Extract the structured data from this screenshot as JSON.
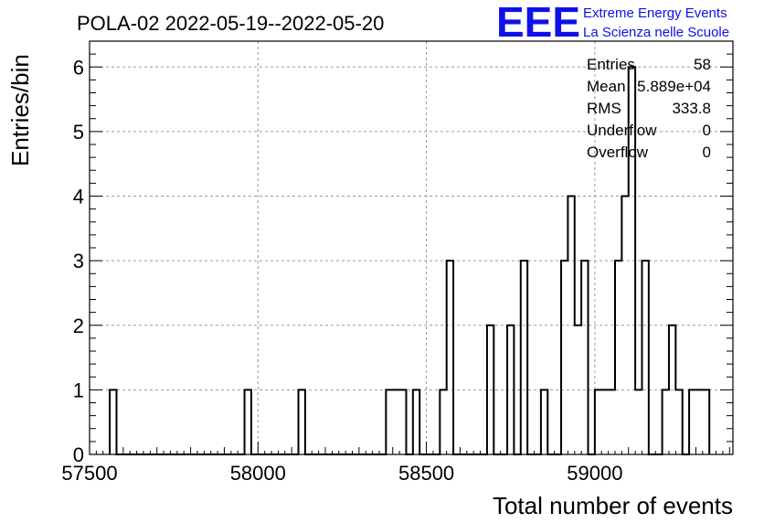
{
  "title": "POLA-02 2022-05-19--2022-05-20",
  "logo": {
    "mark": "EEE",
    "line1": "Extreme Energy Events",
    "line2": "La Scienza nelle Scuole",
    "color": "#1010e8"
  },
  "stats": [
    {
      "label": "Entries",
      "value": "58"
    },
    {
      "label": "Mean",
      "value": "5.889e+04"
    },
    {
      "label": "RMS",
      "value": "333.8"
    },
    {
      "label": "Underflow",
      "value": "0"
    },
    {
      "label": "Overflow",
      "value": "0"
    }
  ],
  "chart_data": {
    "type": "histogram",
    "title": "POLA-02 2022-05-19--2022-05-20",
    "xlabel": "Total number of events",
    "ylabel": "Entries/bin",
    "xlim": [
      57500,
      59410
    ],
    "ylim": [
      0,
      6.4
    ],
    "bin_width": 20,
    "xticks": [
      57500,
      58000,
      58500,
      59000
    ],
    "yticks": [
      0,
      1,
      2,
      3,
      4,
      5,
      6
    ],
    "grid": true,
    "bins": [
      {
        "x0": 57560,
        "count": 1
      },
      {
        "x0": 57960,
        "count": 1
      },
      {
        "x0": 58120,
        "count": 1
      },
      {
        "x0": 58380,
        "count": 1
      },
      {
        "x0": 58400,
        "count": 1
      },
      {
        "x0": 58420,
        "count": 1
      },
      {
        "x0": 58460,
        "count": 1
      },
      {
        "x0": 58540,
        "count": 1
      },
      {
        "x0": 58560,
        "count": 3
      },
      {
        "x0": 58680,
        "count": 2
      },
      {
        "x0": 58740,
        "count": 2
      },
      {
        "x0": 58780,
        "count": 3
      },
      {
        "x0": 58840,
        "count": 1
      },
      {
        "x0": 58900,
        "count": 3
      },
      {
        "x0": 58920,
        "count": 4
      },
      {
        "x0": 58940,
        "count": 2
      },
      {
        "x0": 58960,
        "count": 3
      },
      {
        "x0": 59000,
        "count": 1
      },
      {
        "x0": 59020,
        "count": 1
      },
      {
        "x0": 59040,
        "count": 1
      },
      {
        "x0": 59060,
        "count": 3
      },
      {
        "x0": 59080,
        "count": 4
      },
      {
        "x0": 59100,
        "count": 6
      },
      {
        "x0": 59120,
        "count": 1
      },
      {
        "x0": 59140,
        "count": 3
      },
      {
        "x0": 59200,
        "count": 1
      },
      {
        "x0": 59220,
        "count": 2
      },
      {
        "x0": 59240,
        "count": 1
      },
      {
        "x0": 59280,
        "count": 1
      },
      {
        "x0": 59300,
        "count": 1
      },
      {
        "x0": 59320,
        "count": 1
      }
    ],
    "colors": {
      "line": "#000000",
      "grid": "#9a9a9a"
    }
  }
}
